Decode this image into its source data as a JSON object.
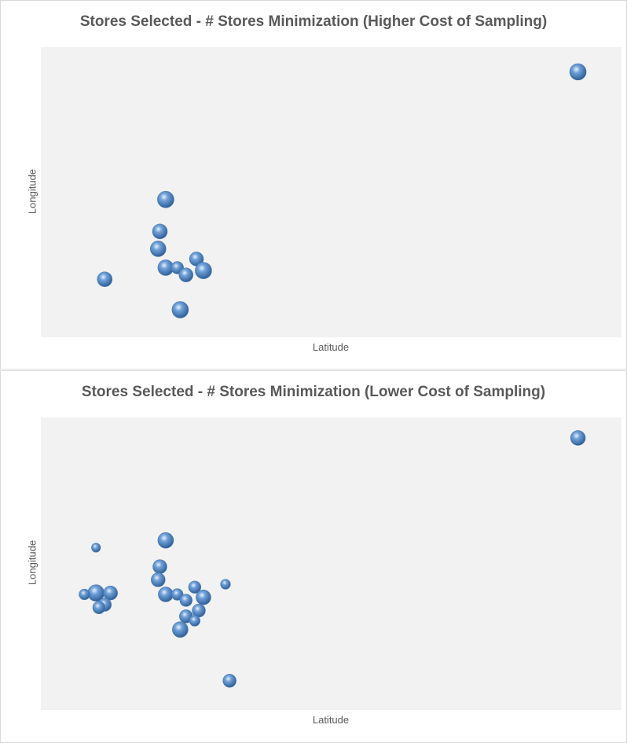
{
  "chart_data": [
    {
      "type": "scatter",
      "title": "Stores Selected - # Stores Minimization (Higher Cost of Sampling)",
      "xlabel": "Latitude",
      "ylabel": "Longitude",
      "xlim": [
        0,
        100
      ],
      "ylim": [
        0,
        100
      ],
      "grid": false,
      "marker_color": "#6fa0d8",
      "points": [
        {
          "x": 92.5,
          "y": 91.5,
          "r": 1.0
        },
        {
          "x": 21.5,
          "y": 47.5,
          "r": 1.0
        },
        {
          "x": 20.5,
          "y": 36.5,
          "r": 0.9
        },
        {
          "x": 20.2,
          "y": 30.5,
          "r": 0.95
        },
        {
          "x": 26.8,
          "y": 27.0,
          "r": 0.85
        },
        {
          "x": 21.5,
          "y": 24.0,
          "r": 0.95
        },
        {
          "x": 23.5,
          "y": 24.0,
          "r": 0.75
        },
        {
          "x": 25.0,
          "y": 21.5,
          "r": 0.85
        },
        {
          "x": 28.0,
          "y": 23.0,
          "r": 1.0
        },
        {
          "x": 11.0,
          "y": 20.0,
          "r": 0.9
        },
        {
          "x": 24.0,
          "y": 9.5,
          "r": 1.0
        }
      ]
    },
    {
      "type": "scatter",
      "title": "Stores Selected - # Stores Minimization (Lower Cost of Sampling)",
      "xlabel": "Latitude",
      "ylabel": "Longitude",
      "xlim": [
        0,
        100
      ],
      "ylim": [
        0,
        100
      ],
      "grid": false,
      "marker_color": "#6fa0d8",
      "points": [
        {
          "x": 92.5,
          "y": 93.0,
          "r": 0.9
        },
        {
          "x": 21.5,
          "y": 58.0,
          "r": 0.95
        },
        {
          "x": 9.5,
          "y": 55.5,
          "r": 0.55
        },
        {
          "x": 20.5,
          "y": 49.0,
          "r": 0.85
        },
        {
          "x": 20.2,
          "y": 44.5,
          "r": 0.85
        },
        {
          "x": 31.8,
          "y": 43.0,
          "r": 0.6
        },
        {
          "x": 26.5,
          "y": 42.0,
          "r": 0.75
        },
        {
          "x": 9.5,
          "y": 40.0,
          "r": 1.0
        },
        {
          "x": 12.0,
          "y": 40.0,
          "r": 0.85
        },
        {
          "x": 7.5,
          "y": 39.5,
          "r": 0.65
        },
        {
          "x": 21.5,
          "y": 39.5,
          "r": 0.9
        },
        {
          "x": 23.5,
          "y": 39.5,
          "r": 0.7
        },
        {
          "x": 25.0,
          "y": 37.5,
          "r": 0.75
        },
        {
          "x": 28.0,
          "y": 38.5,
          "r": 0.9
        },
        {
          "x": 11.0,
          "y": 36.0,
          "r": 0.8
        },
        {
          "x": 10.0,
          "y": 35.0,
          "r": 0.75
        },
        {
          "x": 27.2,
          "y": 34.0,
          "r": 0.8
        },
        {
          "x": 25.0,
          "y": 32.0,
          "r": 0.8
        },
        {
          "x": 26.5,
          "y": 30.5,
          "r": 0.65
        },
        {
          "x": 24.0,
          "y": 27.5,
          "r": 0.95
        },
        {
          "x": 32.5,
          "y": 10.0,
          "r": 0.8
        }
      ]
    }
  ]
}
